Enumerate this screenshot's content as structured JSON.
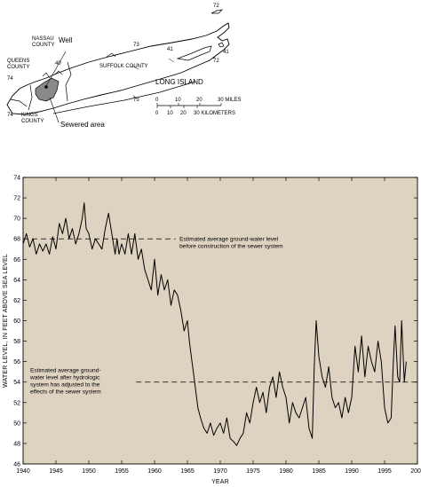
{
  "map": {
    "labels": {
      "nassau": "NASSAU",
      "county1": "COUNTY",
      "well": "Well",
      "queens": "QUEENS",
      "county2": "COUNTY",
      "kings": "KINGS",
      "county3": "COUNTY",
      "suffolk": "SUFFOLK COUNTY",
      "long_island": "LONG ISLAND",
      "sewered_area": "Sewered area"
    },
    "route_numbers": {
      "r72a": "72",
      "r73a": "73",
      "r41a": "41",
      "r41b": "41",
      "r72b": "72",
      "r73b": "73",
      "r74a": "74",
      "r74b": "74",
      "r40": "40"
    },
    "scale_bar": {
      "miles_ticks": [
        "0",
        "10",
        "20",
        "30 MILES"
      ],
      "km_ticks": [
        "0",
        "10",
        "20",
        "30 KILOMETERS"
      ]
    }
  },
  "chart_data": {
    "type": "line",
    "title": "",
    "xlabel": "YEAR",
    "ylabel": "WATER LEVEL, IN FEET ABOVE SEA LEVEL",
    "xlim": [
      1940,
      2000
    ],
    "ylim": [
      46,
      74
    ],
    "xticks": [
      1940,
      1945,
      1950,
      1955,
      1960,
      1965,
      1970,
      1975,
      1980,
      1985,
      1990,
      1995,
      2000
    ],
    "yticks": [
      46,
      48,
      50,
      52,
      54,
      56,
      58,
      60,
      62,
      64,
      66,
      68,
      70,
      72,
      74
    ],
    "grid": false,
    "background": "#ddd3c0",
    "series": [
      {
        "x": [
          1940.0,
          1940.5,
          1941.0,
          1941.5,
          1942.0,
          1942.5,
          1943.0,
          1943.5,
          1944.0,
          1944.5,
          1945.0,
          1945.5,
          1946.0,
          1946.5,
          1947.0,
          1947.5,
          1948.0,
          1948.5,
          1949.0,
          1949.3,
          1949.6,
          1950.0,
          1950.5,
          1951.0,
          1951.5,
          1952.0,
          1952.5,
          1953.0,
          1953.5,
          1954.0,
          1954.3,
          1954.6,
          1955.0,
          1955.5,
          1956.0,
          1956.5,
          1957.0,
          1957.5,
          1958.0,
          1958.5,
          1959.0,
          1959.5,
          1960.0,
          1960.5,
          1961.0,
          1961.5,
          1962.0,
          1962.5,
          1963.0,
          1963.5,
          1964.0,
          1964.5,
          1965.0,
          1965.3,
          1965.6,
          1966.0,
          1966.3,
          1966.6,
          1967.0,
          1967.5,
          1968.0,
          1968.5,
          1969.0,
          1969.5,
          1970.0,
          1970.5,
          1971.0,
          1971.5,
          1972.0,
          1972.5,
          1973.0,
          1973.5,
          1974.0,
          1974.5,
          1975.0,
          1975.5,
          1976.0,
          1976.5,
          1977.0,
          1977.5,
          1978.0,
          1978.5,
          1979.0,
          1979.5,
          1980.0,
          1980.5,
          1981.0,
          1981.5,
          1982.0,
          1982.5,
          1983.0,
          1983.5,
          1984.0,
          1984.3,
          1984.6,
          1985.0,
          1985.5,
          1986.0,
          1986.5,
          1987.0,
          1987.5,
          1988.0,
          1988.5,
          1989.0,
          1989.5,
          1990.0,
          1990.5,
          1991.0,
          1991.5,
          1992.0,
          1992.5,
          1993.0,
          1993.5,
          1994.0,
          1994.5,
          1995.0,
          1995.5,
          1996.0,
          1996.3,
          1996.6,
          1997.0,
          1997.3,
          1997.6,
          1998.0,
          1998.3
        ],
        "y": [
          67.5,
          68.5,
          67.2,
          68.0,
          66.5,
          67.5,
          66.8,
          67.5,
          66.5,
          68.2,
          67.0,
          69.5,
          68.5,
          70.0,
          68.0,
          69.0,
          67.5,
          68.5,
          70.0,
          71.5,
          69.0,
          68.5,
          67.0,
          68.0,
          67.5,
          67.0,
          69.0,
          70.5,
          68.5,
          66.5,
          68.0,
          66.5,
          67.5,
          66.5,
          68.5,
          66.5,
          68.5,
          66.0,
          67.0,
          65.0,
          64.0,
          63.0,
          66.0,
          62.5,
          64.5,
          63.0,
          64.0,
          61.5,
          63.0,
          62.5,
          61.0,
          59.0,
          60.0,
          58.0,
          56.5,
          54.5,
          53.0,
          51.5,
          50.5,
          49.5,
          49.0,
          50.0,
          48.8,
          49.5,
          50.0,
          49.0,
          50.5,
          48.5,
          48.2,
          47.8,
          48.5,
          49.0,
          51.0,
          50.0,
          52.0,
          53.5,
          52.0,
          53.0,
          51.0,
          53.5,
          54.5,
          52.5,
          55.0,
          53.5,
          52.5,
          50.0,
          52.0,
          51.0,
          50.5,
          51.5,
          52.5,
          49.5,
          48.5,
          55.5,
          60.0,
          56.5,
          54.5,
          53.5,
          55.5,
          52.5,
          51.5,
          52.0,
          50.5,
          52.5,
          51.0,
          52.5,
          57.5,
          55.0,
          58.5,
          54.5,
          57.5,
          56.0,
          55.0,
          58.0,
          56.0,
          51.5,
          50.0,
          50.5,
          55.5,
          59.5,
          54.5,
          54.0,
          60.0,
          54.0,
          56.0
        ]
      }
    ],
    "annotations": [
      {
        "text_lines": [
          "Estimated average ground-water level",
          "before construction of the sewer system"
        ],
        "level": 68
      },
      {
        "text_lines": [
          "Estimated average ground-",
          "water level after hydrologic",
          "system has adjusted to the",
          "effects of the sewer system"
        ],
        "level": 54
      }
    ]
  }
}
